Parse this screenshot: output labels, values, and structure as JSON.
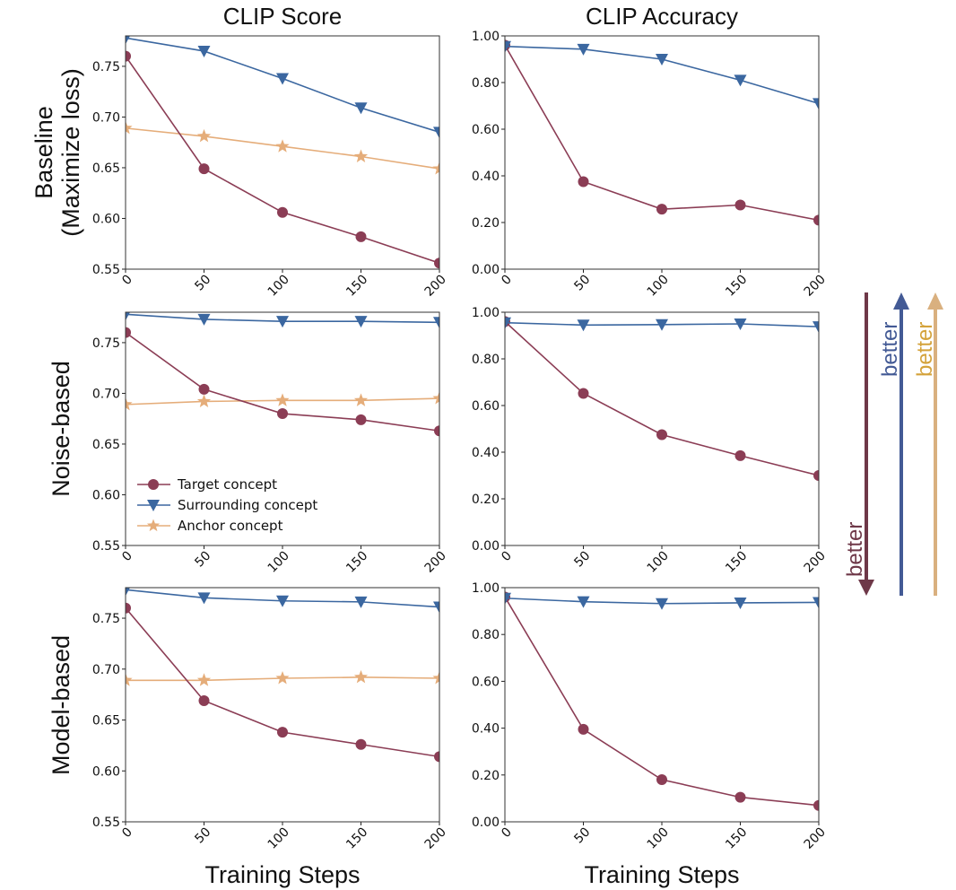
{
  "chart_data": {
    "type": "line",
    "x": [
      0,
      50,
      100,
      150,
      200
    ],
    "xlabel": "Training Steps",
    "xticks": [
      "0",
      "50",
      "100",
      "150",
      "200"
    ],
    "column_titles": [
      "CLIP Score",
      "CLIP Accuracy"
    ],
    "row_titles": [
      [
        "Baseline",
        "(Maximize loss)"
      ],
      [
        "Noise-based"
      ],
      [
        "Model-based"
      ]
    ],
    "legend": {
      "placement": "lower-left (row 2, CLIP Score)",
      "entries": [
        {
          "name": "Target concept",
          "marker": "circle",
          "color": "#8b3d55"
        },
        {
          "name": "Surrounding concept",
          "marker": "triangle-down",
          "color": "#3b67a0"
        },
        {
          "name": "Anchor concept",
          "marker": "star",
          "color": "#e5ad7a"
        }
      ]
    },
    "panels": [
      {
        "row": 0,
        "col": 0,
        "metric": "CLIP Score",
        "method": "Baseline (Maximize loss)",
        "ylim": [
          0.55,
          0.78
        ],
        "yticks": [
          "0.55",
          "0.60",
          "0.65",
          "0.70",
          "0.75"
        ],
        "ytick_values": [
          0.55,
          0.6,
          0.65,
          0.7,
          0.75
        ],
        "series": [
          {
            "name": "Target concept",
            "values": [
              0.76,
              0.649,
              0.606,
              0.582,
              0.556
            ]
          },
          {
            "name": "Surrounding concept",
            "values": [
              0.778,
              0.765,
              0.738,
              0.709,
              0.685
            ]
          },
          {
            "name": "Anchor concept",
            "values": [
              0.689,
              0.681,
              0.671,
              0.661,
              0.649
            ]
          }
        ]
      },
      {
        "row": 0,
        "col": 1,
        "metric": "CLIP Accuracy",
        "method": "Baseline (Maximize loss)",
        "ylim": [
          0.0,
          1.0
        ],
        "yticks": [
          "0.00",
          "0.20",
          "0.40",
          "0.60",
          "0.80",
          "1.00"
        ],
        "ytick_values": [
          0.0,
          0.2,
          0.4,
          0.6,
          0.8,
          1.0
        ],
        "series": [
          {
            "name": "Target concept",
            "values": [
              0.96,
              0.375,
              0.257,
              0.275,
              0.21
            ]
          },
          {
            "name": "Surrounding concept",
            "values": [
              0.955,
              0.943,
              0.9,
              0.81,
              0.71
            ]
          }
        ]
      },
      {
        "row": 1,
        "col": 0,
        "metric": "CLIP Score",
        "method": "Noise-based",
        "ylim": [
          0.55,
          0.78
        ],
        "yticks": [
          "0.55",
          "0.60",
          "0.65",
          "0.70",
          "0.75"
        ],
        "ytick_values": [
          0.55,
          0.6,
          0.65,
          0.7,
          0.75
        ],
        "series": [
          {
            "name": "Target concept",
            "values": [
              0.76,
              0.704,
              0.68,
              0.674,
              0.663
            ]
          },
          {
            "name": "Surrounding concept",
            "values": [
              0.778,
              0.773,
              0.771,
              0.771,
              0.77
            ]
          },
          {
            "name": "Anchor concept",
            "values": [
              0.689,
              0.692,
              0.693,
              0.693,
              0.695
            ]
          }
        ]
      },
      {
        "row": 1,
        "col": 1,
        "metric": "CLIP Accuracy",
        "method": "Noise-based",
        "ylim": [
          0.0,
          1.0
        ],
        "yticks": [
          "0.00",
          "0.20",
          "0.40",
          "0.60",
          "0.80",
          "1.00"
        ],
        "ytick_values": [
          0.0,
          0.2,
          0.4,
          0.6,
          0.8,
          1.0
        ],
        "series": [
          {
            "name": "Target concept",
            "values": [
              0.96,
              0.652,
              0.475,
              0.385,
              0.3
            ]
          },
          {
            "name": "Surrounding concept",
            "values": [
              0.955,
              0.945,
              0.947,
              0.95,
              0.938
            ]
          }
        ]
      },
      {
        "row": 2,
        "col": 0,
        "metric": "CLIP Score",
        "method": "Model-based",
        "ylim": [
          0.55,
          0.78
        ],
        "yticks": [
          "0.55",
          "0.60",
          "0.65",
          "0.70",
          "0.75"
        ],
        "ytick_values": [
          0.55,
          0.6,
          0.65,
          0.7,
          0.75
        ],
        "series": [
          {
            "name": "Target concept",
            "values": [
              0.76,
              0.669,
              0.638,
              0.626,
              0.614
            ]
          },
          {
            "name": "Surrounding concept",
            "values": [
              0.778,
              0.77,
              0.767,
              0.766,
              0.761
            ]
          },
          {
            "name": "Anchor concept",
            "values": [
              0.689,
              0.689,
              0.691,
              0.692,
              0.691
            ]
          }
        ]
      },
      {
        "row": 2,
        "col": 1,
        "metric": "CLIP Accuracy",
        "method": "Model-based",
        "ylim": [
          0.0,
          1.0
        ],
        "yticks": [
          "0.00",
          "0.20",
          "0.40",
          "0.60",
          "0.80",
          "1.00"
        ],
        "ytick_values": [
          0.0,
          0.2,
          0.4,
          0.6,
          0.8,
          1.0
        ],
        "series": [
          {
            "name": "Target concept",
            "values": [
              0.96,
              0.395,
              0.18,
              0.105,
              0.07
            ]
          },
          {
            "name": "Surrounding concept",
            "values": [
              0.955,
              0.94,
              0.932,
              0.935,
              0.937
            ]
          }
        ]
      }
    ],
    "annotations": [
      {
        "text": "better",
        "direction": "down",
        "color": "#6e3848",
        "applies_to": "Target concept"
      },
      {
        "text": "better",
        "direction": "up",
        "color": "#435a95",
        "applies_to": "Surrounding concept"
      },
      {
        "text": "better",
        "direction": "up",
        "color": "#d9b07f",
        "text_color": "#d4a23a",
        "applies_to": "Anchor concept"
      }
    ]
  }
}
